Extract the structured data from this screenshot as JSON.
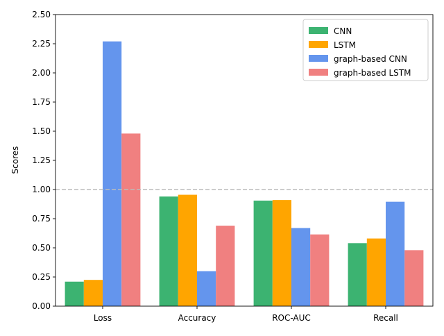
{
  "chart_data": {
    "type": "bar",
    "title": "",
    "xlabel": "",
    "ylabel": "Scores",
    "categories": [
      "Loss",
      "Accuracy",
      "ROC-AUC",
      "Recall"
    ],
    "series": [
      {
        "name": "CNN",
        "color": "#3cb371",
        "values": [
          0.21,
          0.94,
          0.905,
          0.54
        ]
      },
      {
        "name": "LSTM",
        "color": "#ffa500",
        "values": [
          0.225,
          0.955,
          0.91,
          0.58
        ]
      },
      {
        "name": "graph-based CNN",
        "color": "#6495ed",
        "values": [
          2.27,
          0.3,
          0.67,
          0.895
        ]
      },
      {
        "name": "graph-based LSTM",
        "color": "#f08080",
        "values": [
          1.48,
          0.69,
          0.615,
          0.48
        ]
      }
    ],
    "ylim": [
      0,
      2.5
    ],
    "yticks": [
      "0.00",
      "0.25",
      "0.50",
      "0.75",
      "1.00",
      "1.25",
      "1.50",
      "1.75",
      "2.00",
      "2.25",
      "2.50"
    ],
    "reference_line": {
      "y": 1.0,
      "style": "dashed",
      "color": "#bbbbbb"
    },
    "legend_position": "top-right",
    "grid": false
  }
}
